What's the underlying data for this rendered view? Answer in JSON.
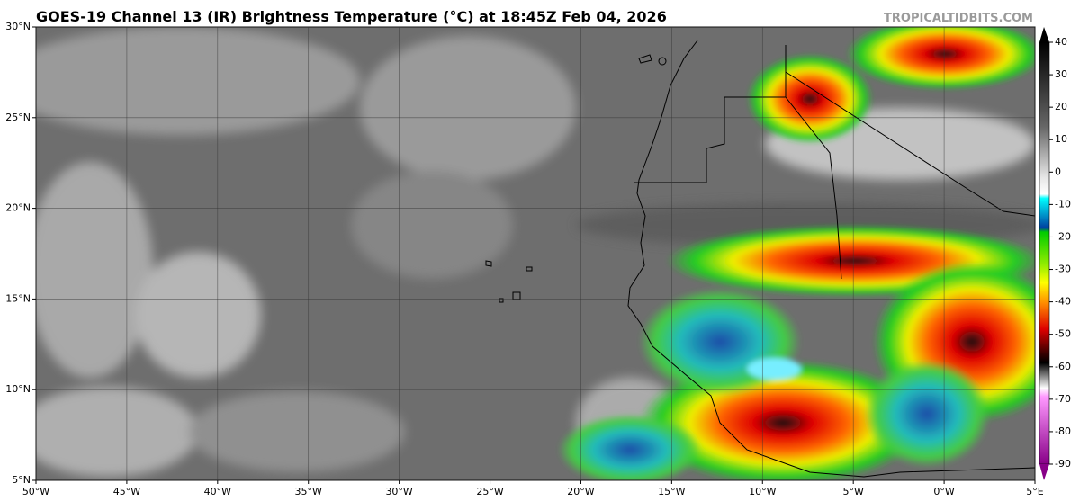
{
  "map": {
    "title": "GOES-19 Channel 13 (IR) Brightness Temperature (°C) at 18:45Z Feb 04, 2026",
    "watermark": "TROPICALTIDBITS.COM",
    "lon_range": [
      -50,
      5
    ],
    "lat_range": [
      5,
      30
    ],
    "lat_ticks": [
      {
        "value": 30,
        "label": "30°N"
      },
      {
        "value": 25,
        "label": "25°N"
      },
      {
        "value": 20,
        "label": "20°N"
      },
      {
        "value": 15,
        "label": "15°N"
      },
      {
        "value": 10,
        "label": "10°N"
      },
      {
        "value": 5,
        "label": "5°N"
      }
    ],
    "lon_ticks": [
      {
        "value": -50,
        "label": "50°W"
      },
      {
        "value": -45,
        "label": "45°W"
      },
      {
        "value": -40,
        "label": "40°W"
      },
      {
        "value": -35,
        "label": "35°W"
      },
      {
        "value": -30,
        "label": "30°W"
      },
      {
        "value": -25,
        "label": "25°W"
      },
      {
        "value": -20,
        "label": "20°W"
      },
      {
        "value": -15,
        "label": "15°W"
      },
      {
        "value": -10,
        "label": "10°W"
      },
      {
        "value": -5,
        "label": "5°W"
      },
      {
        "value": 0,
        "label": "0°W"
      },
      {
        "value": 5,
        "label": "5°E"
      }
    ],
    "colorbar": {
      "range": [
        40,
        -90
      ],
      "ticks": [
        40,
        30,
        20,
        10,
        0,
        -10,
        -20,
        -30,
        -40,
        -50,
        -60,
        -70,
        -80,
        -90
      ]
    }
  }
}
